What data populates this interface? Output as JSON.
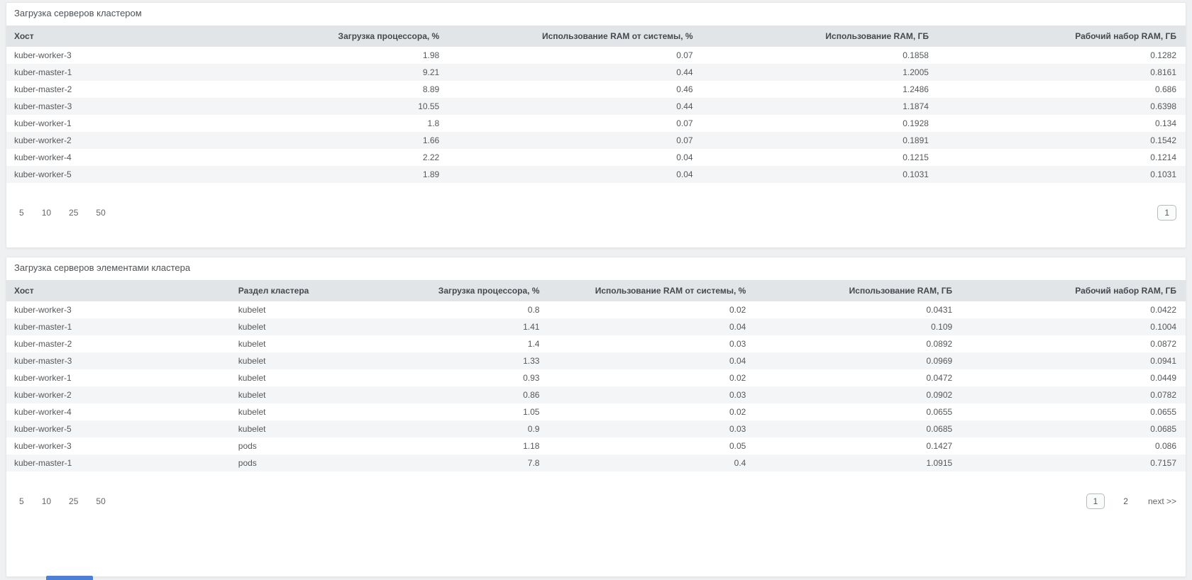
{
  "colors": {
    "page_bg": "#eef0f1",
    "panel_bg": "#ffffff",
    "table_header_bg": "#e2e5e7",
    "row_stripe_bg": "#f4f5f6",
    "accent_bar": "#4c7fd6"
  },
  "panels": [
    {
      "title": "Загрузка серверов кластером",
      "columns": [
        "Хост",
        "Загрузка процессора, %",
        "Использование RAM от системы, %",
        "Использование RAM, ГБ",
        "Рабочий набор RAM, ГБ"
      ],
      "rows": [
        [
          "kuber-worker-3",
          "1.98",
          "0.07",
          "0.1858",
          "0.1282"
        ],
        [
          "kuber-master-1",
          "9.21",
          "0.44",
          "1.2005",
          "0.8161"
        ],
        [
          "kuber-master-2",
          "8.89",
          "0.46",
          "1.2486",
          "0.686"
        ],
        [
          "kuber-master-3",
          "10.55",
          "0.44",
          "1.1874",
          "0.6398"
        ],
        [
          "kuber-worker-1",
          "1.8",
          "0.07",
          "0.1928",
          "0.134"
        ],
        [
          "kuber-worker-2",
          "1.66",
          "0.07",
          "0.1891",
          "0.1542"
        ],
        [
          "kuber-worker-4",
          "2.22",
          "0.04",
          "0.1215",
          "0.1214"
        ],
        [
          "kuber-worker-5",
          "1.89",
          "0.04",
          "0.1031",
          "0.1031"
        ]
      ],
      "pagination": {
        "page_sizes": [
          "5",
          "10",
          "25",
          "50"
        ],
        "pages": [
          "1"
        ],
        "active_page": "1"
      }
    },
    {
      "title": "Загрузка серверов элементами кластера",
      "columns": [
        "Хост",
        "Раздел кластера",
        "Загрузка процессора, %",
        "Использование RAM от системы, %",
        "Использование RAM, ГБ",
        "Рабочий набор RAM, ГБ"
      ],
      "rows": [
        [
          "kuber-worker-3",
          "kubelet",
          "0.8",
          "0.02",
          "0.0431",
          "0.0422"
        ],
        [
          "kuber-master-1",
          "kubelet",
          "1.41",
          "0.04",
          "0.109",
          "0.1004"
        ],
        [
          "kuber-master-2",
          "kubelet",
          "1.4",
          "0.03",
          "0.0892",
          "0.0872"
        ],
        [
          "kuber-master-3",
          "kubelet",
          "1.33",
          "0.04",
          "0.0969",
          "0.0941"
        ],
        [
          "kuber-worker-1",
          "kubelet",
          "0.93",
          "0.02",
          "0.0472",
          "0.0449"
        ],
        [
          "kuber-worker-2",
          "kubelet",
          "0.86",
          "0.03",
          "0.0902",
          "0.0782"
        ],
        [
          "kuber-worker-4",
          "kubelet",
          "1.05",
          "0.02",
          "0.0655",
          "0.0655"
        ],
        [
          "kuber-worker-5",
          "kubelet",
          "0.9",
          "0.03",
          "0.0685",
          "0.0685"
        ],
        [
          "kuber-worker-3",
          "pods",
          "1.18",
          "0.05",
          "0.1427",
          "0.086"
        ],
        [
          "kuber-master-1",
          "pods",
          "7.8",
          "0.4",
          "1.0915",
          "0.7157"
        ]
      ],
      "pagination": {
        "page_sizes": [
          "5",
          "10",
          "25",
          "50"
        ],
        "pages": [
          "1",
          "2"
        ],
        "active_page": "1",
        "next_label": "next >>"
      }
    }
  ]
}
